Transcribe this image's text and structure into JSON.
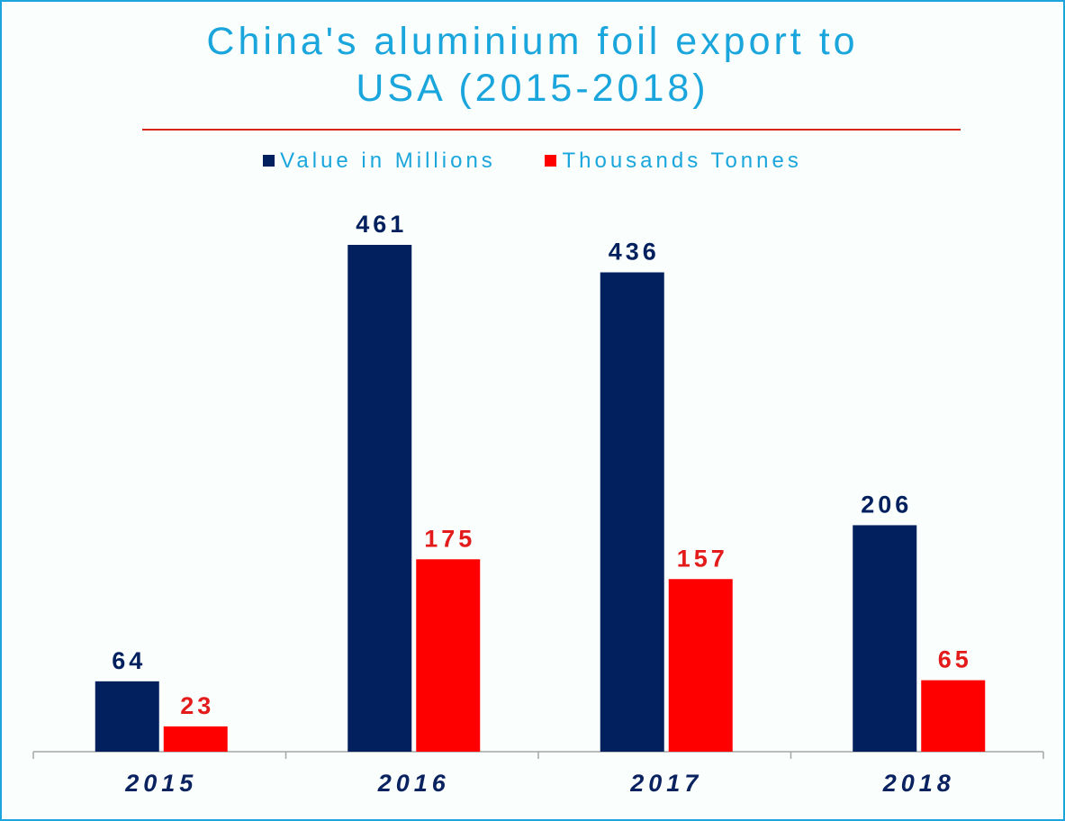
{
  "chart_data": {
    "type": "bar",
    "title": "China's aluminium foil export to USA (2015-2018)",
    "title_lines": [
      "China's aluminium foil export to",
      "USA (2015-2018)"
    ],
    "categories": [
      "2015",
      "2016",
      "2017",
      "2018"
    ],
    "series": [
      {
        "name": "Value in Millions",
        "values": [
          64,
          461,
          436,
          206
        ],
        "color": "#03205e",
        "label_color": "#03205e"
      },
      {
        "name": "Thousands Tonnes",
        "values": [
          23,
          175,
          157,
          65
        ],
        "color": "#ff0000",
        "label_color": "#e31b1b"
      }
    ],
    "ylim": [
      0,
      461
    ],
    "legend_position": "top",
    "grid": false,
    "data_labels": true,
    "colors": {
      "title": "#1aa6dc",
      "frame": "#1aa6dc",
      "rule": "#d9261c",
      "axis": "#a6a6a6",
      "category_label": "#0b2260"
    }
  }
}
